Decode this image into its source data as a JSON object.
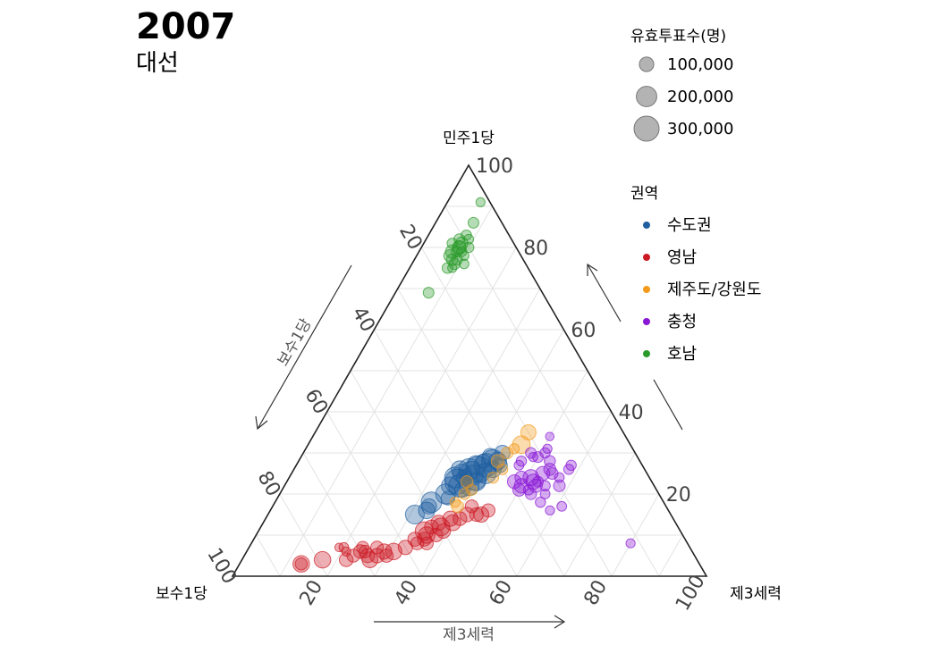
{
  "title": "2007",
  "subtitle": "대선",
  "chart_data": {
    "type": "scatter",
    "subtype": "ternary",
    "axes": {
      "top": {
        "label": "민주1당",
        "ticks": [
          20,
          40,
          60,
          80,
          100
        ]
      },
      "left": {
        "label": "보수1당",
        "ticks": [
          20,
          40,
          60,
          80,
          100
        ]
      },
      "right": {
        "label": "제3세력",
        "ticks": [
          20,
          40,
          60,
          80,
          100
        ]
      }
    },
    "legend_size": {
      "title": "유효투표수(명)",
      "entries": [
        "100,000",
        "200,000",
        "300,000"
      ],
      "values": [
        100000,
        200000,
        300000
      ]
    },
    "legend_color": {
      "title": "권역",
      "entries": [
        {
          "name": "수도권",
          "color": "#1f5fa0"
        },
        {
          "name": "영남",
          "color": "#cc1a24"
        },
        {
          "name": "제주도/강원도",
          "color": "#f39a1b"
        },
        {
          "name": "충청",
          "color": "#8a17d6"
        },
        {
          "name": "호남",
          "color": "#2a9a2a"
        }
      ]
    },
    "direction_labels": {
      "left": "보수1당",
      "bottom": "제3세력"
    },
    "series": [
      {
        "name": "수도권",
        "columns": [
          "민주1당",
          "제3세력",
          "votes"
        ],
        "points": [
          [
            27,
            40,
            260000
          ],
          [
            26,
            39,
            320000
          ],
          [
            25,
            38,
            280000
          ],
          [
            24,
            39,
            300000
          ],
          [
            28,
            41,
            250000
          ],
          [
            23,
            36,
            300000
          ],
          [
            22,
            37,
            240000
          ],
          [
            26,
            37,
            220000
          ],
          [
            25,
            41,
            200000
          ],
          [
            24,
            35,
            210000
          ],
          [
            27,
            38,
            180000
          ],
          [
            20,
            35,
            190000
          ],
          [
            18,
            33,
            200000
          ],
          [
            28,
            42,
            150000
          ],
          [
            23,
            40,
            160000
          ],
          [
            26,
            42,
            130000
          ],
          [
            24,
            37,
            120000
          ],
          [
            22,
            35,
            150000
          ],
          [
            21,
            38,
            110000
          ],
          [
            29,
            40,
            140000
          ],
          [
            25,
            36,
            170000
          ],
          [
            27,
            43,
            100000
          ],
          [
            19,
            36,
            90000
          ],
          [
            15,
            31,
            170000
          ],
          [
            16,
            33,
            130000
          ],
          [
            26,
            35,
            140000
          ],
          [
            30,
            42,
            110000
          ],
          [
            22,
            39,
            180000
          ],
          [
            17,
            33,
            110000
          ],
          [
            28,
            39,
            95000
          ]
        ]
      },
      {
        "name": "영남",
        "columns": [
          "민주1당",
          "제3세력",
          "votes"
        ],
        "points": [
          [
            12,
            38,
            150000
          ],
          [
            11,
            35,
            160000
          ],
          [
            10,
            36,
            130000
          ],
          [
            13,
            40,
            120000
          ],
          [
            14,
            39,
            110000
          ],
          [
            15,
            45,
            110000
          ],
          [
            15,
            42,
            100000
          ],
          [
            9,
            36,
            90000
          ],
          [
            8,
            35,
            80000
          ],
          [
            7,
            33,
            100000
          ],
          [
            6,
            31,
            130000
          ],
          [
            5,
            28,
            100000
          ],
          [
            6,
            29,
            110000
          ],
          [
            4,
            27,
            120000
          ],
          [
            5,
            26,
            95000
          ],
          [
            6,
            24,
            90000
          ],
          [
            5,
            23,
            80000
          ],
          [
            4,
            22,
            90000
          ],
          [
            7,
            24,
            70000
          ],
          [
            6,
            25,
            75000
          ],
          [
            7,
            20,
            45000
          ],
          [
            7,
            19,
            35000
          ],
          [
            6,
            21,
            40000
          ],
          [
            4,
            17,
            130000
          ],
          [
            3,
            13,
            130000
          ],
          [
            3,
            13,
            70000
          ],
          [
            13,
            37,
            110000
          ],
          [
            15,
            44,
            90000
          ],
          [
            9,
            34,
            95000
          ],
          [
            11,
            39,
            100000
          ],
          [
            12,
            36,
            90000
          ],
          [
            14,
            41,
            90000
          ],
          [
            10,
            38,
            85000
          ],
          [
            8,
            37,
            80000
          ],
          [
            7,
            27,
            75000
          ],
          [
            5,
            30,
            85000
          ],
          [
            16,
            46,
            85000
          ],
          [
            17,
            42,
            80000
          ]
        ]
      },
      {
        "name": "제주도/강원도",
        "columns": [
          "민주1당",
          "제3세력",
          "votes"
        ],
        "points": [
          [
            32,
            45,
            150000
          ],
          [
            35,
            45,
            110000
          ],
          [
            28,
            42,
            80000
          ],
          [
            23,
            38,
            70000
          ],
          [
            20,
            39,
            60000
          ],
          [
            17,
            39,
            70000
          ],
          [
            24,
            43,
            60000
          ],
          [
            21,
            40,
            55000
          ],
          [
            30,
            43,
            65000
          ],
          [
            26,
            44,
            55000
          ],
          [
            18,
            38,
            50000
          ],
          [
            31,
            44,
            50000
          ]
        ]
      },
      {
        "name": "충청",
        "columns": [
          "민주1당",
          "제3세력",
          "votes"
        ],
        "points": [
          [
            24,
            51,
            120000
          ],
          [
            23,
            52,
            110000
          ],
          [
            22,
            50,
            100000
          ],
          [
            23,
            48,
            90000
          ],
          [
            25,
            53,
            95000
          ],
          [
            22,
            53,
            85000
          ],
          [
            24,
            49,
            80000
          ],
          [
            21,
            50,
            75000
          ],
          [
            26,
            54,
            70000
          ],
          [
            25,
            55,
            65000
          ],
          [
            20,
            53,
            60000
          ],
          [
            28,
            53,
            60000
          ],
          [
            29,
            50,
            55000
          ],
          [
            30,
            51,
            50000
          ],
          [
            28,
            47,
            50000
          ],
          [
            30,
            48,
            55000
          ],
          [
            27,
            47,
            45000
          ],
          [
            23,
            53,
            55000
          ],
          [
            21,
            52,
            50000
          ],
          [
            20,
            56,
            45000
          ],
          [
            22,
            58,
            65000
          ],
          [
            18,
            56,
            50000
          ],
          [
            17,
            61,
            45000
          ],
          [
            16,
            59,
            40000
          ],
          [
            8,
            80,
            40000
          ],
          [
            26,
            58,
            50000
          ],
          [
            24,
            57,
            45000
          ],
          [
            22,
            55,
            50000
          ],
          [
            27,
            58,
            50000
          ],
          [
            31,
            51,
            40000
          ],
          [
            29,
            49,
            40000
          ],
          [
            34,
            50,
            35000
          ]
        ]
      },
      {
        "name": "호남",
        "columns": [
          "민주1당",
          "제3세력",
          "votes"
        ],
        "points": [
          [
            80,
            8,
            90000
          ],
          [
            79,
            7,
            85000
          ],
          [
            80,
            8,
            80000
          ],
          [
            81,
            8,
            75000
          ],
          [
            78,
            7,
            70000
          ],
          [
            77,
            8,
            65000
          ],
          [
            76,
            9,
            60000
          ],
          [
            75,
            8,
            55000
          ],
          [
            82,
            7,
            55000
          ],
          [
            83,
            8,
            50000
          ],
          [
            86,
            8,
            55000
          ],
          [
            76,
            11,
            45000
          ],
          [
            75,
            9,
            40000
          ],
          [
            69,
            7,
            55000
          ],
          [
            91,
            7,
            40000
          ],
          [
            79,
            8,
            60000
          ],
          [
            81,
            6,
            50000
          ],
          [
            77,
            9,
            55000
          ],
          [
            78,
            10,
            45000
          ],
          [
            80,
            10,
            50000
          ],
          [
            82,
            9,
            45000
          ],
          [
            79,
            9,
            50000
          ]
        ]
      }
    ]
  }
}
